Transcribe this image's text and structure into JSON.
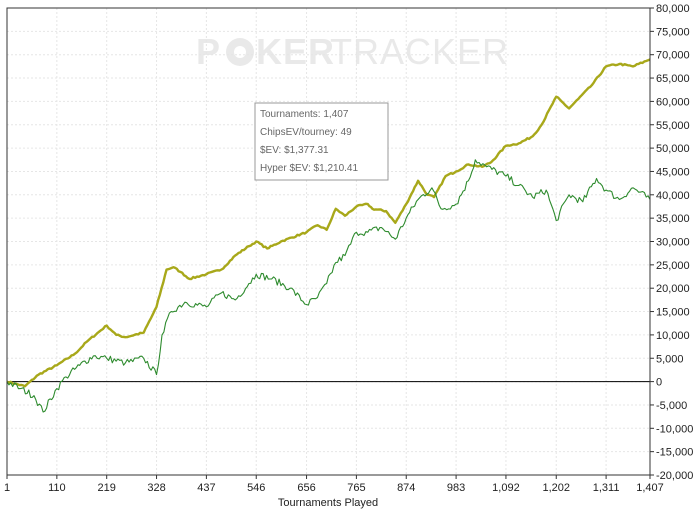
{
  "watermark": {
    "left": "P",
    "middle": "KER",
    "right": "TRACKER"
  },
  "infobox": {
    "line1": "Tournaments: 1,407",
    "line2": "ChipsEV/tourney: 49",
    "line3": "$EV: $1,377.31",
    "line4": "Hyper $EV: $1,210.41"
  },
  "chart_data": {
    "type": "line",
    "xlabel": "Tournaments Played",
    "ylabel": "",
    "xlim": [
      1,
      1407
    ],
    "ylim": [
      -20000,
      80000
    ],
    "x_ticks": [
      "1",
      "110",
      "219",
      "328",
      "437",
      "546",
      "656",
      "765",
      "874",
      "983",
      "1,092",
      "1,202",
      "1,311",
      "1,407"
    ],
    "y_ticks": [
      "80,000",
      "75,000",
      "70,000",
      "65,000",
      "60,000",
      "55,000",
      "50,000",
      "45,000",
      "40,000",
      "35,000",
      "30,000",
      "25,000",
      "20,000",
      "15,000",
      "10,000",
      "5,000",
      "0",
      "-5,000",
      "-10,000",
      "-15,000",
      "-20,000"
    ],
    "grid": true,
    "series": [
      {
        "color": "#a8a81a",
        "x": [
          1,
          40,
          70,
          110,
          150,
          175,
          219,
          240,
          260,
          300,
          328,
          350,
          365,
          380,
          400,
          437,
          470,
          500,
          530,
          546,
          570,
          600,
          656,
          680,
          700,
          720,
          740,
          765,
          790,
          800,
          830,
          850,
          874,
          900,
          920,
          935,
          960,
          983,
          1010,
          1040,
          1060,
          1092,
          1120,
          1150,
          1170,
          1202,
          1230,
          1250,
          1280,
          1311,
          1340,
          1370,
          1407
        ],
        "y": [
          0,
          -1000,
          1500,
          3500,
          6000,
          8500,
          12000,
          10000,
          9500,
          10500,
          16000,
          24000,
          24500,
          23500,
          22000,
          23000,
          24000,
          27000,
          29000,
          30000,
          28500,
          30000,
          32000,
          33500,
          32500,
          37000,
          35500,
          37500,
          38000,
          37000,
          36500,
          34000,
          38000,
          43000,
          40000,
          39500,
          44000,
          45000,
          46500,
          46000,
          47000,
          50500,
          51000,
          52500,
          55000,
          61000,
          58500,
          60500,
          63500,
          67500,
          68000,
          67500,
          69000
        ]
      },
      {
        "color": "#2e8b2e",
        "x": [
          1,
          30,
          60,
          80,
          110,
          130,
          160,
          190,
          219,
          260,
          300,
          328,
          340,
          360,
          390,
          437,
          470,
          500,
          530,
          546,
          580,
          620,
          656,
          680,
          700,
          720,
          740,
          765,
          790,
          820,
          850,
          874,
          900,
          930,
          950,
          983,
          1010,
          1025,
          1050,
          1092,
          1120,
          1150,
          1180,
          1202,
          1230,
          1260,
          1290,
          1311,
          1340,
          1370,
          1407
        ],
        "y": [
          0,
          -1500,
          -3000,
          -6500,
          -1500,
          1000,
          3500,
          5500,
          5000,
          4000,
          5000,
          1500,
          10000,
          15000,
          17000,
          16000,
          19000,
          17500,
          21000,
          23000,
          22000,
          20000,
          16500,
          18000,
          21000,
          25500,
          27000,
          32000,
          32000,
          33000,
          30500,
          35000,
          39000,
          41500,
          37000,
          38000,
          43000,
          47500,
          46000,
          44000,
          42000,
          39500,
          41000,
          34500,
          40000,
          38500,
          43500,
          41000,
          39000,
          41500,
          39000
        ]
      }
    ]
  }
}
